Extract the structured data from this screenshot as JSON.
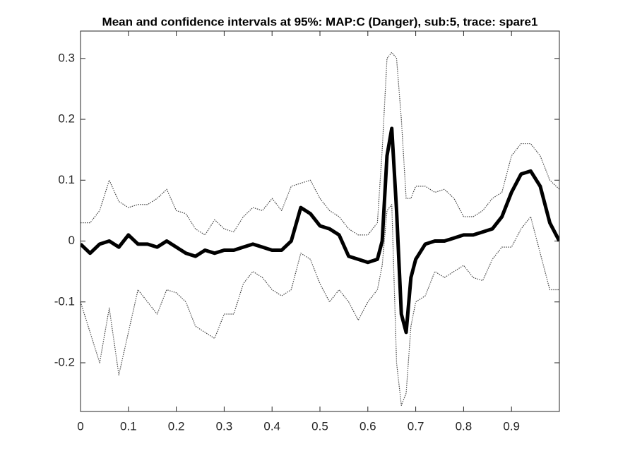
{
  "chart_data": {
    "type": "line",
    "title": "Mean and confidence intervals at 95%: MAP:C (Danger), sub:5, trace: spare1",
    "x": [
      0,
      0.02,
      0.04,
      0.06,
      0.08,
      0.1,
      0.12,
      0.14,
      0.16,
      0.18,
      0.2,
      0.22,
      0.24,
      0.26,
      0.28,
      0.3,
      0.32,
      0.34,
      0.36,
      0.38,
      0.4,
      0.42,
      0.44,
      0.46,
      0.48,
      0.5,
      0.52,
      0.54,
      0.56,
      0.58,
      0.6,
      0.62,
      0.63,
      0.64,
      0.65,
      0.66,
      0.67,
      0.68,
      0.69,
      0.7,
      0.72,
      0.74,
      0.76,
      0.78,
      0.8,
      0.82,
      0.84,
      0.86,
      0.88,
      0.9,
      0.92,
      0.94,
      0.96,
      0.98,
      1
    ],
    "series": [
      {
        "color": "#000000",
        "line_style": "solid",
        "values": [
          -0.005,
          -0.02,
          -0.005,
          0,
          -0.01,
          0.01,
          -0.005,
          -0.005,
          -0.01,
          0,
          -0.01,
          -0.02,
          -0.025,
          -0.015,
          -0.02,
          -0.015,
          -0.015,
          -0.01,
          -0.005,
          -0.01,
          -0.015,
          -0.015,
          0,
          0.055,
          0.045,
          0.025,
          0.02,
          0.01,
          -0.025,
          -0.03,
          -0.035,
          -0.03,
          0,
          0.14,
          0.185,
          0.05,
          -0.12,
          -0.15,
          -0.06,
          -0.03,
          -0.005,
          0,
          0,
          0.005,
          0.01,
          0.01,
          0.015,
          0.02,
          0.04,
          0.08,
          0.11,
          0.115,
          0.09,
          0.03,
          0
        ]
      },
      {
        "color": "#444444",
        "line_style": "dotted",
        "values": [
          0.03,
          0.03,
          0.05,
          0.1,
          0.065,
          0.055,
          0.06,
          0.06,
          0.07,
          0.085,
          0.05,
          0.045,
          0.02,
          0.01,
          0.035,
          0.02,
          0.015,
          0.04,
          0.055,
          0.05,
          0.07,
          0.05,
          0.09,
          0.095,
          0.1,
          0.07,
          0.05,
          0.04,
          0.02,
          0.01,
          0.01,
          0.03,
          0.15,
          0.3,
          0.31,
          0.3,
          0.2,
          0.07,
          0.07,
          0.09,
          0.09,
          0.08,
          0.085,
          0.07,
          0.04,
          0.04,
          0.05,
          0.07,
          0.08,
          0.14,
          0.16,
          0.16,
          0.14,
          0.1,
          0.085
        ]
      },
      {
        "color": "#444444",
        "line_style": "dotted",
        "values": [
          -0.1,
          -0.15,
          -0.2,
          -0.11,
          -0.22,
          -0.15,
          -0.08,
          -0.1,
          -0.12,
          -0.08,
          -0.085,
          -0.1,
          -0.14,
          -0.15,
          -0.16,
          -0.12,
          -0.12,
          -0.07,
          -0.05,
          -0.06,
          -0.08,
          -0.09,
          -0.08,
          -0.02,
          -0.03,
          -0.07,
          -0.1,
          -0.08,
          -0.1,
          -0.13,
          -0.1,
          -0.08,
          -0.04,
          0.05,
          0.06,
          -0.2,
          -0.27,
          -0.25,
          -0.14,
          -0.1,
          -0.09,
          -0.05,
          -0.06,
          -0.05,
          -0.04,
          -0.06,
          -0.065,
          -0.03,
          -0.01,
          -0.01,
          0.02,
          0.04,
          -0.02,
          -0.08,
          -0.08
        ]
      }
    ],
    "xlim": [
      0,
      1
    ],
    "xticks": [
      0,
      0.1,
      0.2,
      0.3,
      0.4,
      0.5,
      0.6,
      0.7,
      0.8,
      0.9
    ],
    "ylim": [
      -0.28,
      0.345
    ],
    "yticks": [
      -0.2,
      -0.1,
      0,
      0.1,
      0.2,
      0.3
    ],
    "grid": false,
    "box": true
  }
}
